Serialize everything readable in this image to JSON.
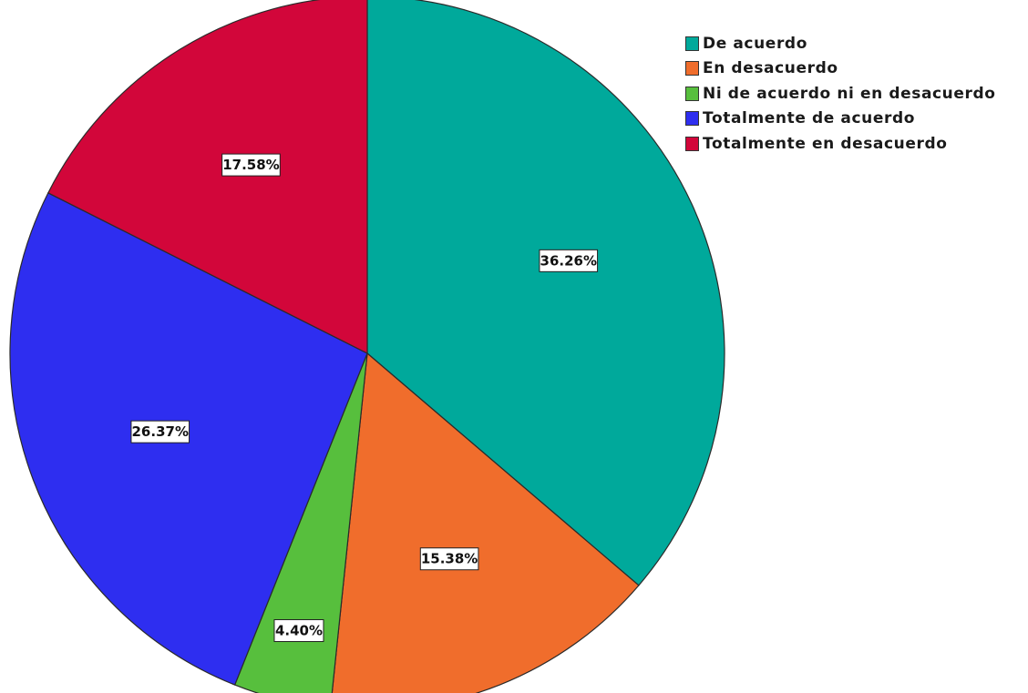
{
  "chart_data": {
    "type": "pie",
    "slices": [
      {
        "label": "De acuerdo",
        "value": 36.26,
        "text": "36.26%",
        "color": "#00a99b"
      },
      {
        "label": "En desacuerdo",
        "value": 15.38,
        "text": "15.38%",
        "color": "#f06d2c"
      },
      {
        "label": "Ni de acuerdo ni en desacuerdo",
        "value": 4.4,
        "text": "4.40%",
        "color": "#57bf3d"
      },
      {
        "label": "Totalmente de acuerdo",
        "value": 26.37,
        "text": "26.37%",
        "color": "#2e2ef0"
      },
      {
        "label": "Totalmente en desacuerdo",
        "value": 17.58,
        "text": "17.58%",
        "color": "#d2063a"
      }
    ],
    "legend_position": "top-right",
    "start_angle_deg": 0,
    "direction": "clockwise"
  }
}
